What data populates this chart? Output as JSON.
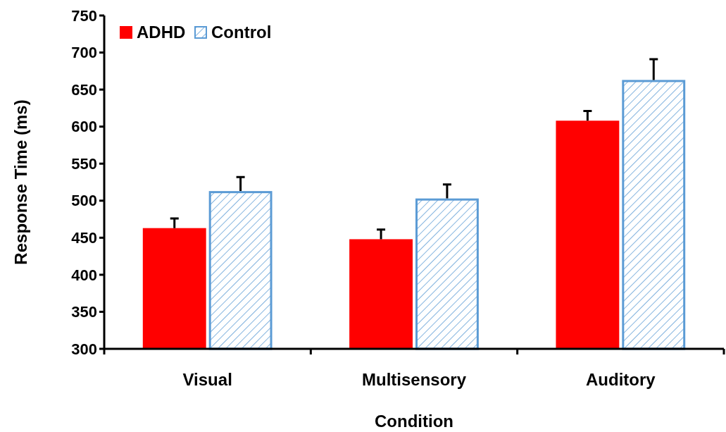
{
  "chart_data": {
    "type": "bar",
    "xlabel": "Condition",
    "ylabel": "Response Time (ms)",
    "categories": [
      "Visual",
      "Multisensory",
      "Auditory"
    ],
    "series": [
      {
        "name": "ADHD",
        "color": "#ff0000",
        "values": [
          463,
          448,
          608
        ],
        "errors": [
          [
            463,
            476
          ],
          [
            448,
            461
          ],
          [
            608,
            621
          ]
        ]
      },
      {
        "name": "Control",
        "color": "#5b9bd5",
        "values": [
          513,
          503,
          663
        ],
        "errors": [
          [
            513,
            532
          ],
          [
            503,
            522
          ],
          [
            663,
            691
          ]
        ]
      }
    ],
    "ylim": [
      300,
      750
    ],
    "yticks": [
      300,
      350,
      400,
      450,
      500,
      550,
      600,
      650,
      700,
      750
    ],
    "grid": false,
    "legend": "top left"
  }
}
